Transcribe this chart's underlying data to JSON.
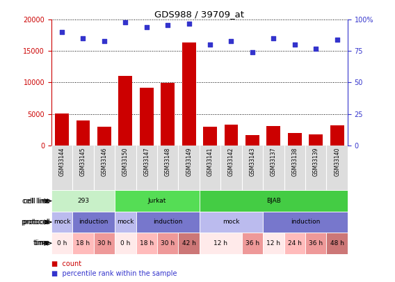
{
  "title": "GDS988 / 39709_at",
  "samples": [
    "GSM33144",
    "GSM33145",
    "GSM33146",
    "GSM33150",
    "GSM33147",
    "GSM33148",
    "GSM33149",
    "GSM33141",
    "GSM33142",
    "GSM33143",
    "GSM33137",
    "GSM33138",
    "GSM33139",
    "GSM33140"
  ],
  "counts": [
    5100,
    4000,
    3000,
    11000,
    9200,
    9900,
    16400,
    3000,
    3300,
    1600,
    3100,
    2000,
    1700,
    3200
  ],
  "percentile": [
    90,
    85,
    83,
    98,
    94,
    96,
    97,
    80,
    83,
    74,
    85,
    80,
    77,
    84
  ],
  "ylim_left": [
    0,
    20000
  ],
  "ylim_right": [
    0,
    100
  ],
  "yticks_left": [
    0,
    5000,
    10000,
    15000,
    20000
  ],
  "yticks_right": [
    0,
    25,
    50,
    75,
    100
  ],
  "bar_color": "#cc0000",
  "dot_color": "#3333cc",
  "cell_line_segs": [
    {
      "label": "293",
      "start": 0,
      "end": 3,
      "color": "#c8f0c8"
    },
    {
      "label": "Jurkat",
      "start": 3,
      "end": 7,
      "color": "#55dd55"
    },
    {
      "label": "BJAB",
      "start": 7,
      "end": 14,
      "color": "#44cc44"
    }
  ],
  "protocol_segs": [
    {
      "label": "mock",
      "start": 0,
      "end": 1,
      "color": "#bbbbee"
    },
    {
      "label": "induction",
      "start": 1,
      "end": 3,
      "color": "#7777cc"
    },
    {
      "label": "mock",
      "start": 3,
      "end": 4,
      "color": "#bbbbee"
    },
    {
      "label": "induction",
      "start": 4,
      "end": 7,
      "color": "#7777cc"
    },
    {
      "label": "mock",
      "start": 7,
      "end": 10,
      "color": "#bbbbee"
    },
    {
      "label": "induction",
      "start": 10,
      "end": 14,
      "color": "#7777cc"
    }
  ],
  "time_segs": [
    {
      "label": "0 h",
      "start": 0,
      "end": 1,
      "color": "#ffeaea"
    },
    {
      "label": "18 h",
      "start": 1,
      "end": 2,
      "color": "#ffbbbb"
    },
    {
      "label": "30 h",
      "start": 2,
      "end": 3,
      "color": "#ee9999"
    },
    {
      "label": "0 h",
      "start": 3,
      "end": 4,
      "color": "#ffeaea"
    },
    {
      "label": "18 h",
      "start": 4,
      "end": 5,
      "color": "#ffbbbb"
    },
    {
      "label": "30 h",
      "start": 5,
      "end": 6,
      "color": "#ee9999"
    },
    {
      "label": "42 h",
      "start": 6,
      "end": 7,
      "color": "#cc7777"
    },
    {
      "label": "12 h",
      "start": 7,
      "end": 9,
      "color": "#ffeaea"
    },
    {
      "label": "36 h",
      "start": 9,
      "end": 10,
      "color": "#ee9999"
    },
    {
      "label": "12 h",
      "start": 10,
      "end": 11,
      "color": "#ffeaea"
    },
    {
      "label": "24 h",
      "start": 11,
      "end": 12,
      "color": "#ffbbbb"
    },
    {
      "label": "36 h",
      "start": 12,
      "end": 13,
      "color": "#ee9999"
    },
    {
      "label": "48 h",
      "start": 13,
      "end": 14,
      "color": "#cc7777"
    }
  ],
  "legend_items": [
    {
      "label": "count",
      "color": "#cc0000"
    },
    {
      "label": "percentile rank within the sample",
      "color": "#3333cc"
    }
  ],
  "xticklabel_bg": "#dddddd",
  "axis_color_left": "#cc0000",
  "axis_color_right": "#3333cc"
}
